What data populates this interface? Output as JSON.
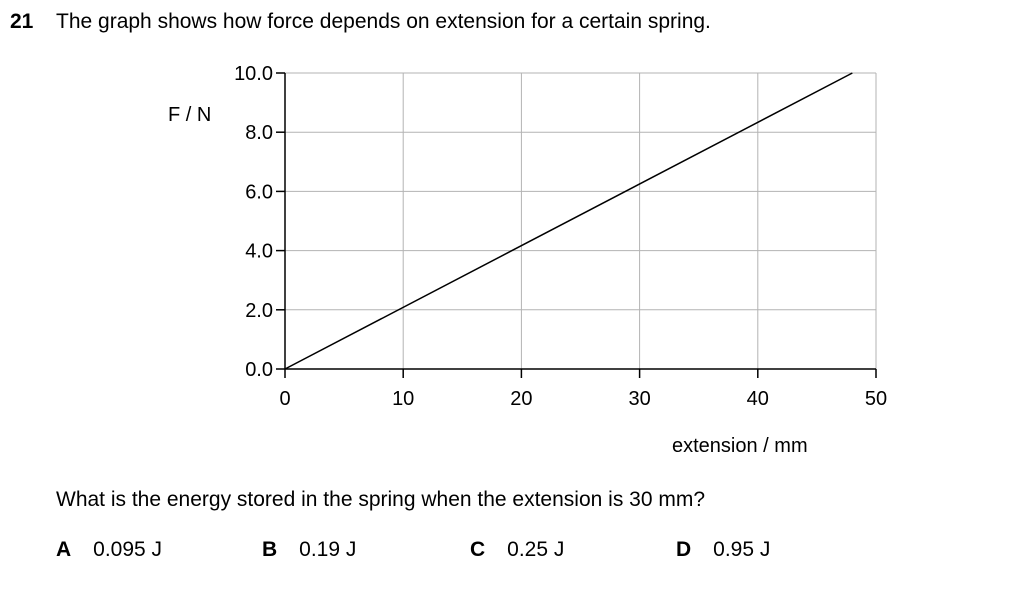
{
  "question_number": "21",
  "stem": "The graph shows how force depends on extension for a certain spring.",
  "question": "What is the energy stored in the spring when the extension is 30 mm?",
  "options": [
    {
      "letter": "A",
      "text": "0.095 J"
    },
    {
      "letter": "B",
      "text": "0.19 J"
    },
    {
      "letter": "C",
      "text": "0.25 J"
    },
    {
      "letter": "D",
      "text": "0.95 J"
    }
  ],
  "chart_data": {
    "type": "line",
    "title": "",
    "xlabel": "extension / mm",
    "ylabel": "F / N",
    "xlim": [
      0,
      50
    ],
    "ylim": [
      0,
      10
    ],
    "x_ticks": [
      "0",
      "10",
      "20",
      "30",
      "40",
      "50"
    ],
    "y_ticks": [
      "0.0",
      "2.0",
      "4.0",
      "6.0",
      "8.0",
      "10.0"
    ],
    "grid": true,
    "series": [
      {
        "x": [
          0,
          48
        ],
        "y": [
          0,
          10
        ]
      }
    ]
  }
}
